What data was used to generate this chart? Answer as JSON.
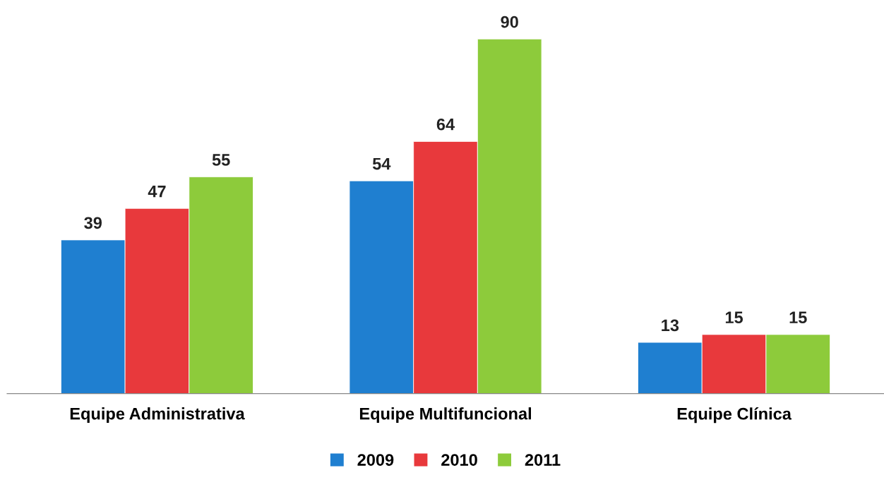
{
  "chart_data": {
    "type": "bar",
    "categories": [
      "Equipe Administrativa",
      "Equipe Multifuncional",
      "Equipe Clínica"
    ],
    "series": [
      {
        "name": "2009",
        "color": "#1f7fd0",
        "values": [
          39,
          54,
          13
        ]
      },
      {
        "name": "2010",
        "color": "#e8393c",
        "values": [
          47,
          64,
          15
        ]
      },
      {
        "name": "2011",
        "color": "#8dcb3b",
        "values": [
          55,
          90,
          15
        ]
      }
    ],
    "data_labels": true,
    "legend": "bottom",
    "tick_labels": "x"
  }
}
